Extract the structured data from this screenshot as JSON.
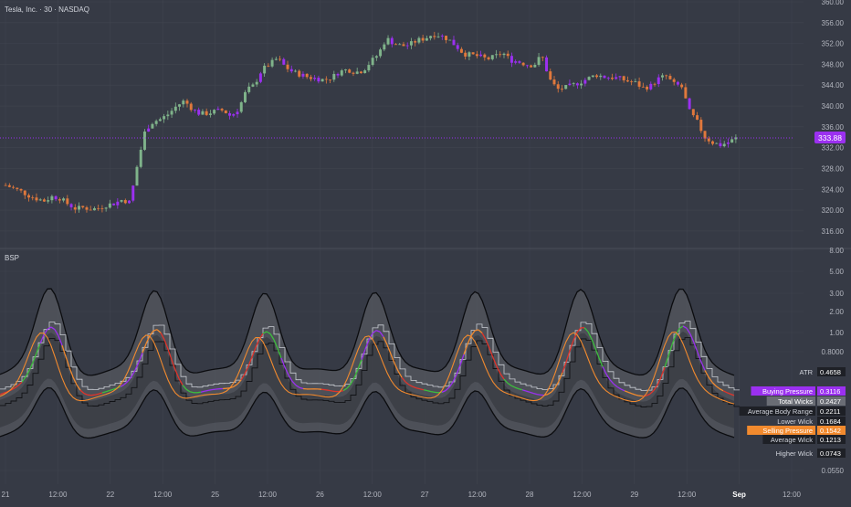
{
  "header": {
    "symbol_title": "Tesla, Inc. · 30 · NASDAQ",
    "indicator_name": "BSP"
  },
  "colors": {
    "background": "#363a45",
    "grid": "#40444f",
    "text": "#d1d4dc",
    "up_candle": "#7fb38a",
    "down_candle": "#e0783c",
    "purple": "#9b30f0",
    "orange": "#f28a2e",
    "red": "#e0342b",
    "green": "#3dbe3d",
    "band_fill": "#55585f",
    "dark_band": "#2a2d34"
  },
  "chart_data": [
    {
      "type": "candlestick",
      "title": "Tesla, Inc. · 30 · NASDAQ",
      "y_ticks": [
        "360.00",
        "356.00",
        "352.00",
        "348.00",
        "344.00",
        "340.00",
        "336.00",
        "332.00",
        "328.00",
        "324.00",
        "320.00",
        "316.00"
      ],
      "ylim": [
        313,
        360
      ],
      "last_price_label": "333.88",
      "last_price": 333.88,
      "close_path": [
        324.8,
        324.2,
        323.6,
        322.8,
        322.2,
        321.8,
        322.6,
        322.3,
        321.2,
        320.3,
        320.5,
        320.2,
        320.4,
        321.0,
        321.3,
        322.0,
        321.5,
        329.0,
        335.5,
        337.0,
        337.5,
        338.5,
        340.0,
        341.0,
        339.5,
        338.5,
        338.6,
        339.0,
        339.2,
        338.0,
        339.5,
        343.0,
        344.0,
        347.0,
        348.0,
        349.2,
        347.5,
        346.5,
        346.0,
        345.5,
        345.3,
        345.0,
        345.5,
        346.6,
        347.0,
        346.5,
        346.8,
        348.5,
        350.0,
        353.0,
        352.0,
        351.5,
        351.8,
        352.6,
        353.0,
        353.8,
        353.5,
        352.8,
        351.5,
        350.0,
        349.8,
        349.5,
        349.0,
        349.5,
        350.2,
        348.8,
        348.5,
        348.0,
        347.8,
        349.8,
        345.2,
        343.2,
        343.5,
        344.0,
        344.6,
        345.3,
        346.0,
        345.6,
        345.5,
        345.3,
        344.8,
        344.5,
        343.5,
        343.8,
        345.2,
        345.8,
        344.2,
        343.8,
        339.0,
        337.0,
        334.0,
        333.0,
        332.5,
        333.0,
        333.8
      ]
    },
    {
      "type": "line",
      "title": "BSP",
      "y_scale": "log",
      "y_ticks": [
        "8.00",
        "5.00",
        "3.00",
        "2.00",
        "1.00",
        "0.8000",
        "0.0550"
      ],
      "series": [
        {
          "name": "ATR",
          "last_value": "0.4658"
        },
        {
          "name": "Buying Pressure",
          "last_value": "0.3116"
        },
        {
          "name": "Total Wicks",
          "last_value": "0.2427"
        },
        {
          "name": "Average Body Range",
          "last_value": "0.2211"
        },
        {
          "name": "Lower Wick",
          "last_value": "0.1684"
        },
        {
          "name": "Selling Pressure",
          "last_value": "0.1542"
        },
        {
          "name": "Average Wick",
          "last_value": "0.1213"
        },
        {
          "name": "Higher Wick",
          "last_value": "0.0743"
        }
      ]
    }
  ],
  "time_axis": {
    "labels": [
      "21",
      "12:00",
      "22",
      "12:00",
      "25",
      "12:00",
      "26",
      "12:00",
      "27",
      "12:00",
      "28",
      "12:00",
      "29",
      "12:00",
      "Sep",
      "12:00"
    ]
  }
}
